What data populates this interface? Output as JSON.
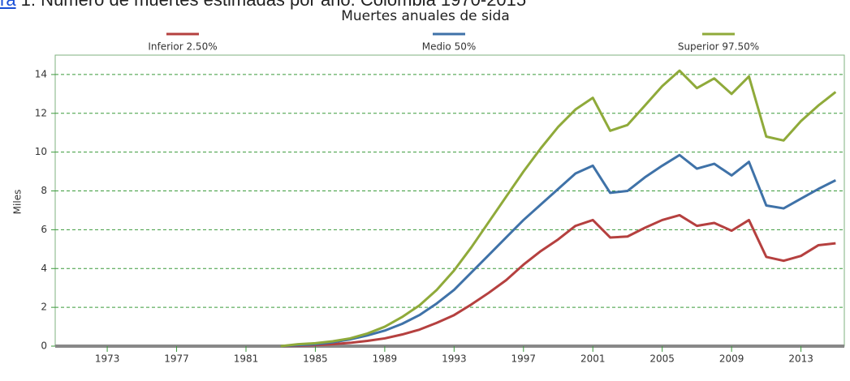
{
  "caption": {
    "link": "ra",
    "text": " 1: Número de muertes estimadas por año. Colombia 1970-2015"
  },
  "chart_data": {
    "type": "line",
    "title": "Muertes anuales de sida",
    "ylabel": "Miles",
    "x": [
      1983,
      1984,
      1985,
      1986,
      1987,
      1988,
      1989,
      1990,
      1991,
      1992,
      1993,
      1994,
      1995,
      1996,
      1997,
      1998,
      1999,
      2000,
      2001,
      2002,
      2003,
      2004,
      2005,
      2006,
      2007,
      2008,
      2009,
      2010,
      2011,
      2012,
      2013,
      2014,
      2015
    ],
    "series": [
      {
        "name": "Inferior 2.50%",
        "color": "#b5403f",
        "values": [
          0,
          0.02,
          0.05,
          0.1,
          0.17,
          0.27,
          0.4,
          0.6,
          0.85,
          1.2,
          1.6,
          2.15,
          2.75,
          3.4,
          4.2,
          4.9,
          5.5,
          6.2,
          6.5,
          5.6,
          5.65,
          6.1,
          6.5,
          6.75,
          6.2,
          6.35,
          5.95,
          6.5,
          4.6,
          4.4,
          4.65,
          5.2,
          5.3
        ]
      },
      {
        "name": "Medio 50%",
        "color": "#3f72a8",
        "values": [
          0,
          0.05,
          0.1,
          0.2,
          0.35,
          0.55,
          0.8,
          1.15,
          1.6,
          2.2,
          2.9,
          3.8,
          4.7,
          5.6,
          6.5,
          7.3,
          8.1,
          8.9,
          9.3,
          7.9,
          8.0,
          8.7,
          9.3,
          9.85,
          9.15,
          9.4,
          8.8,
          9.5,
          7.25,
          7.1,
          7.6,
          8.1,
          8.55
        ]
      },
      {
        "name": "Superior 97.50%",
        "color": "#8faa3a",
        "values": [
          0,
          0.1,
          0.15,
          0.25,
          0.4,
          0.65,
          1.0,
          1.5,
          2.1,
          2.9,
          3.9,
          5.1,
          6.4,
          7.7,
          9.0,
          10.2,
          11.3,
          12.2,
          12.8,
          11.1,
          11.4,
          12.4,
          13.4,
          14.2,
          13.3,
          13.8,
          13.0,
          13.9,
          10.8,
          10.6,
          11.6,
          12.4,
          13.1
        ]
      }
    ],
    "xlim": [
      1970,
      2015.5
    ],
    "xticks": [
      1973,
      1977,
      1981,
      1985,
      1989,
      1993,
      1997,
      2001,
      2005,
      2009,
      2013
    ],
    "ylim": [
      0,
      15
    ],
    "yticks": [
      0,
      2,
      4,
      6,
      8,
      10,
      12,
      14
    ],
    "grid": true
  }
}
